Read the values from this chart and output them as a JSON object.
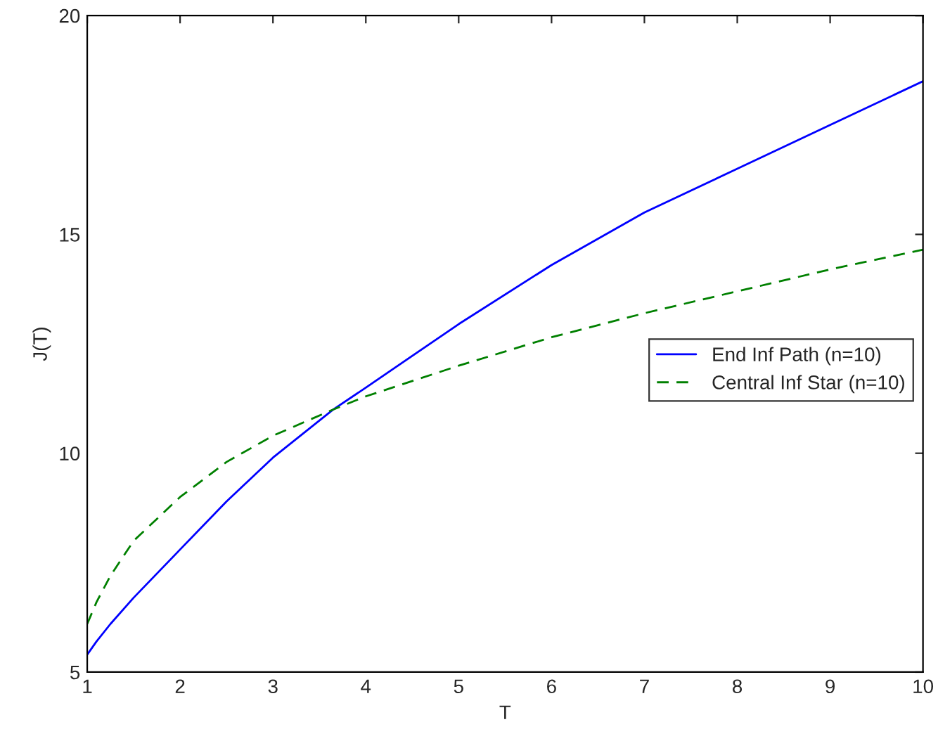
{
  "chart_data": {
    "type": "line",
    "xlabel": "T",
    "ylabel": "J(T)",
    "x": [
      1,
      1.1,
      1.25,
      1.5,
      2,
      2.5,
      3,
      3.65,
      4,
      5,
      6,
      7,
      8,
      9,
      10
    ],
    "series": [
      {
        "name": "End Inf Path (n=10)",
        "color": "#0000ff",
        "line_style": "solid",
        "values": [
          5.4,
          5.7,
          6.1,
          6.7,
          7.8,
          8.9,
          9.9,
          11.0,
          11.5,
          12.95,
          14.3,
          15.5,
          16.5,
          17.5,
          18.5
        ]
      },
      {
        "name": "Central Inf Star (n=10)",
        "color": "#008000",
        "line_style": "dashed",
        "values": [
          6.1,
          6.6,
          7.2,
          8.0,
          9.0,
          9.8,
          10.4,
          11.0,
          11.3,
          12.0,
          12.65,
          13.2,
          13.7,
          14.2,
          14.65
        ]
      }
    ],
    "xlim": [
      1,
      10
    ],
    "ylim": [
      5,
      20
    ],
    "xticks": [
      1,
      2,
      3,
      4,
      5,
      6,
      7,
      8,
      9,
      10
    ],
    "yticks": [
      5,
      10,
      15,
      20
    ],
    "grid": false,
    "legend": "right"
  }
}
